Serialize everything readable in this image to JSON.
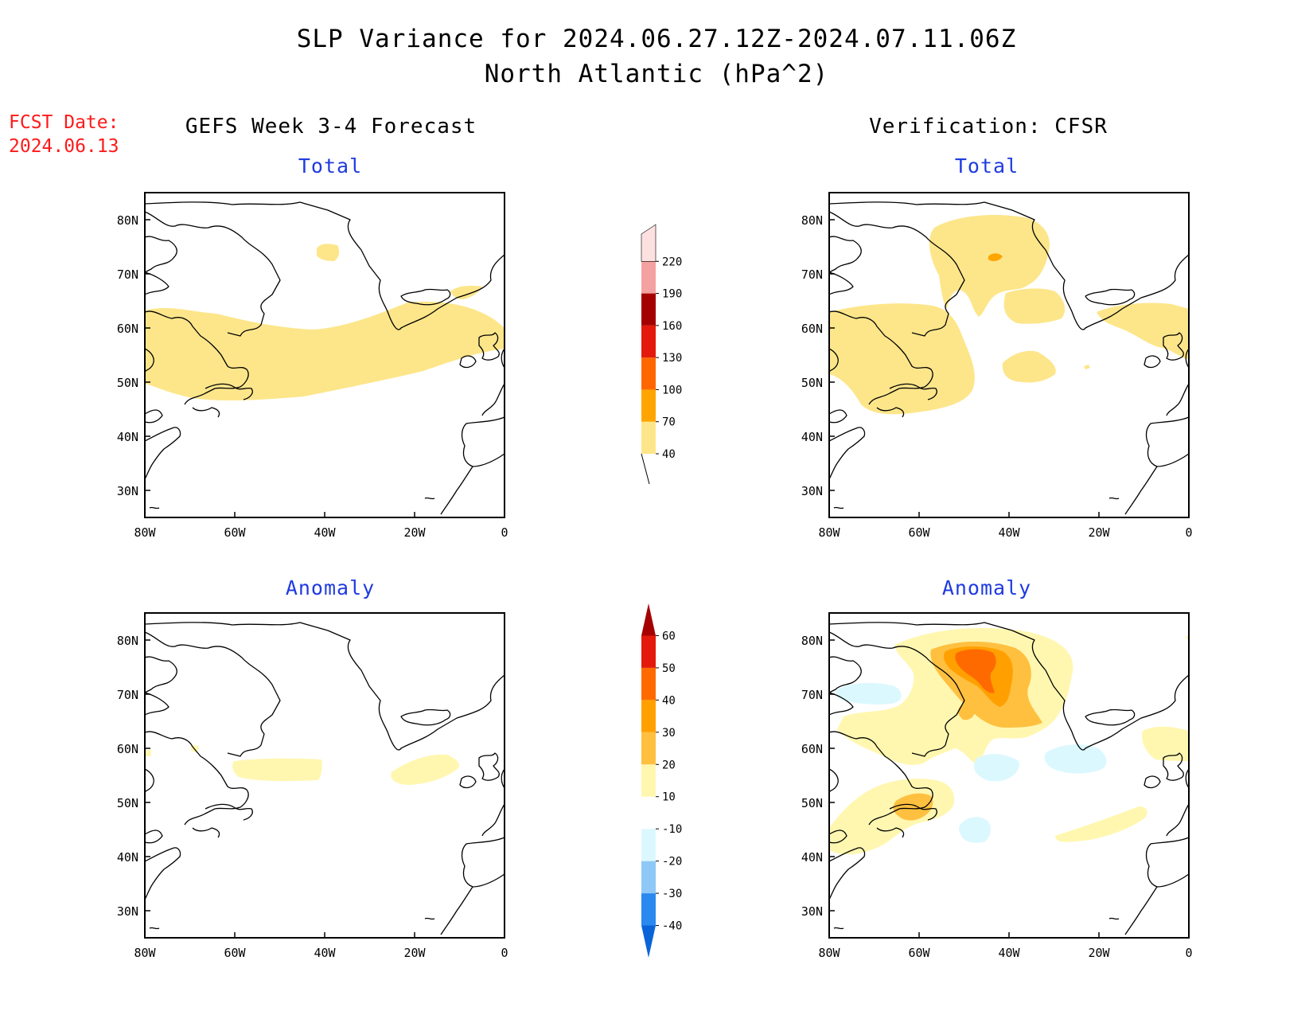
{
  "title": {
    "line1": "SLP Variance for 2024.06.27.12Z-2024.07.11.06Z",
    "line2": "North Atlantic (hPa^2)"
  },
  "forecast_date": {
    "label": "FCST Date:",
    "value": "2024.06.13"
  },
  "columns": {
    "left_header": "GEFS Week 3-4 Forecast",
    "right_header": "Verification: CFSR"
  },
  "panels": {
    "top_left_title": "Total",
    "top_right_title": "Total",
    "bottom_left_title": "Anomaly",
    "bottom_right_title": "Anomaly"
  },
  "axes": {
    "x_ticks": [
      "80W",
      "60W",
      "40W",
      "20W",
      "0"
    ],
    "y_ticks": [
      "80N",
      "70N",
      "60N",
      "50N",
      "40N",
      "30N"
    ],
    "lon_range": [
      -80,
      0
    ],
    "lat_range": [
      25,
      85
    ]
  },
  "colorbars": {
    "total": {
      "levels": [
        "40",
        "70",
        "100",
        "130",
        "160",
        "190",
        "220"
      ],
      "colors": [
        "#fde68a",
        "#ffa500",
        "#ff6600",
        "#e31a0b",
        "#a50000",
        "#f4a1a1",
        "#fde0e0"
      ]
    },
    "anomaly": {
      "levels": [
        "-40",
        "-30",
        "-20",
        "-10",
        "10",
        "20",
        "30",
        "40",
        "50",
        "60"
      ],
      "colors": [
        "#0a64d8",
        "#2a89ee",
        "#8ec8f6",
        "#dcf8ff",
        "#ffffff",
        "#fff7b0",
        "#ffc040",
        "#ffa000",
        "#ff6a00",
        "#e31a0b",
        "#a50000"
      ]
    }
  },
  "fill_colors": {
    "level_40": "#fde68a",
    "level_70": "#ffa500",
    "anom_10": "#fff7b0",
    "anom_20": "#ffc040",
    "anom_30": "#ffa000",
    "anom_40": "#ff6a00",
    "anom_neg10": "#dcf8ff"
  }
}
